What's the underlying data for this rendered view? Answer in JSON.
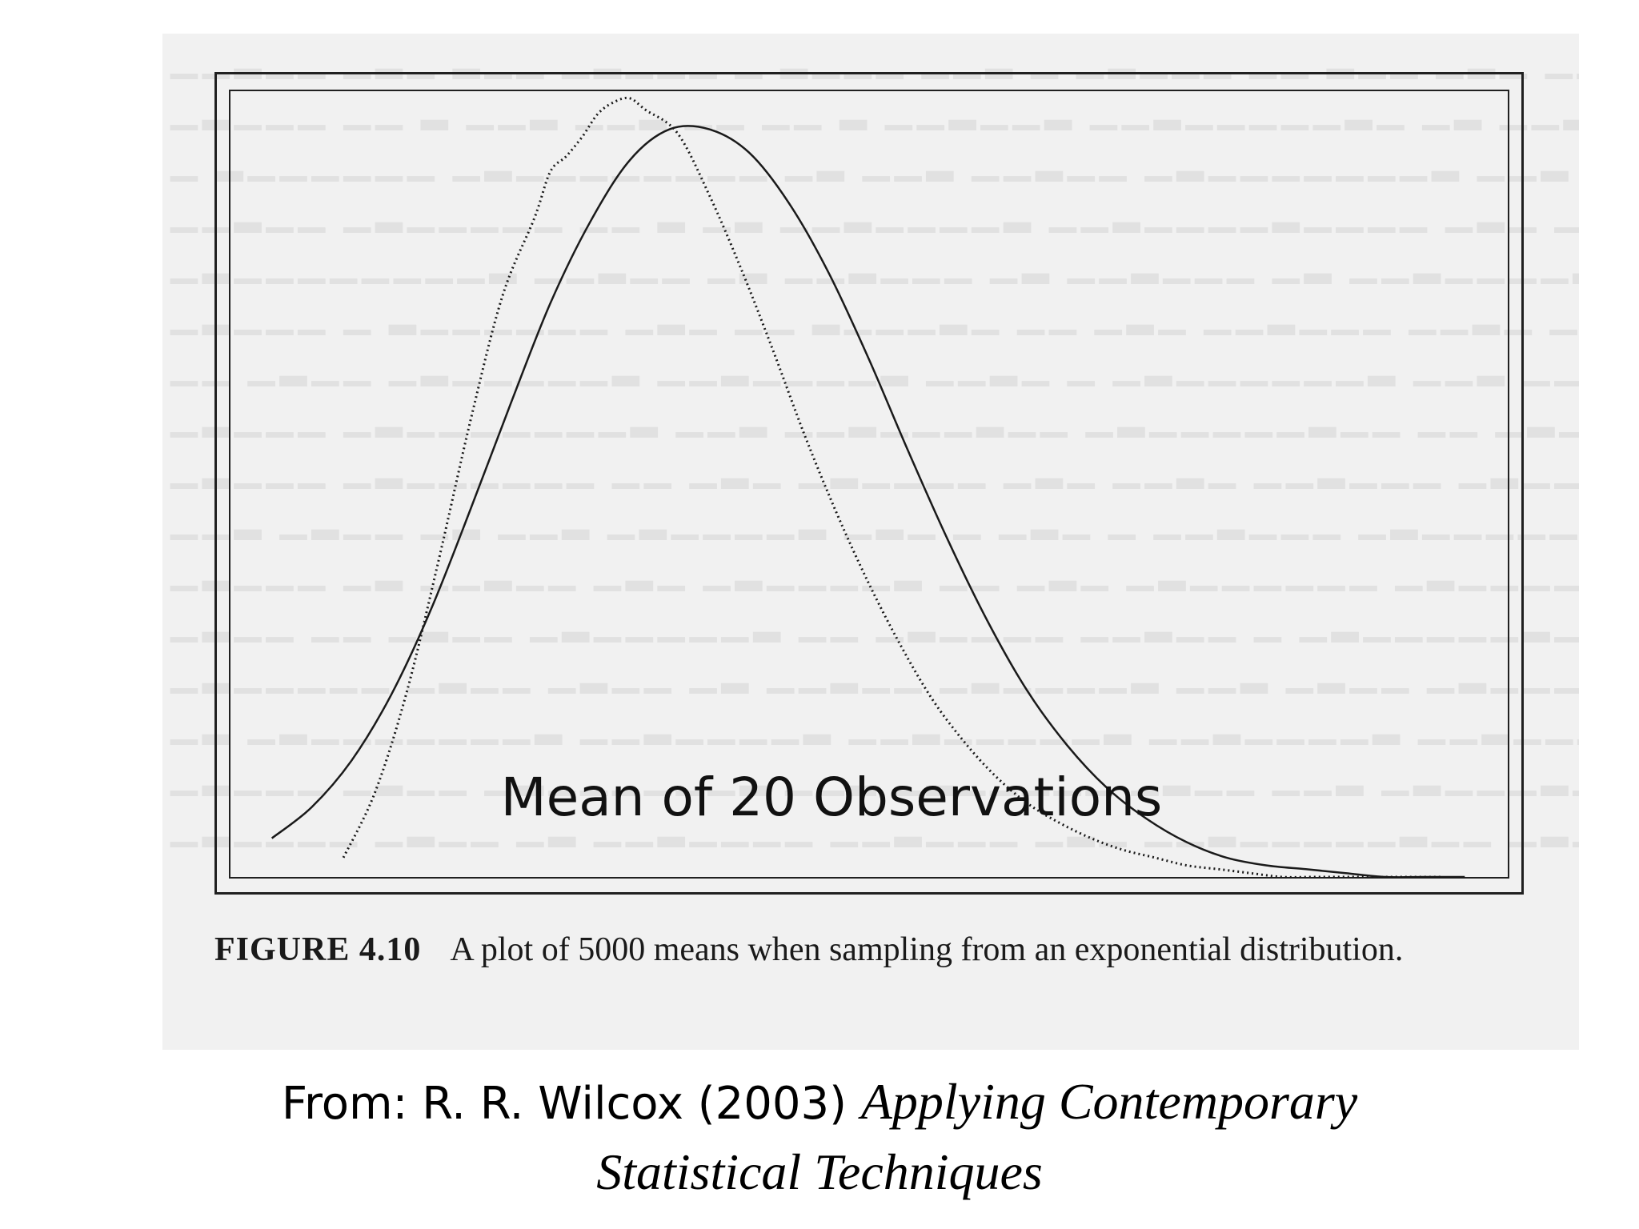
{
  "chart_data": {
    "type": "line",
    "title": "",
    "annotation": "Mean of 20 Observations",
    "xlabel": "",
    "ylabel": "",
    "axes_shown": false,
    "grid": false,
    "xlim": [
      0.3,
      1.9
    ],
    "ylim": [
      0,
      2.02
    ],
    "series": [
      {
        "style": "solid",
        "x": [
          0.35,
          0.4,
          0.45,
          0.5,
          0.55,
          0.6,
          0.65,
          0.7,
          0.75,
          0.8,
          0.85,
          0.9,
          0.95,
          1.0,
          1.05,
          1.1,
          1.15,
          1.2,
          1.25,
          1.3,
          1.35,
          1.4,
          1.45,
          1.5,
          1.55,
          1.6,
          1.65,
          1.7,
          1.75,
          1.8,
          1.85
        ],
        "y": [
          0.1,
          0.18,
          0.3,
          0.47,
          0.69,
          0.95,
          1.22,
          1.48,
          1.69,
          1.85,
          1.93,
          1.93,
          1.87,
          1.74,
          1.56,
          1.34,
          1.1,
          0.87,
          0.66,
          0.48,
          0.34,
          0.23,
          0.15,
          0.09,
          0.05,
          0.03,
          0.02,
          0.01,
          0.0,
          0.0,
          0.0
        ]
      },
      {
        "style": "dotted",
        "x": [
          0.44,
          0.48,
          0.52,
          0.56,
          0.6,
          0.64,
          0.68,
          0.7,
          0.72,
          0.74,
          0.76,
          0.78,
          0.8,
          0.82,
          0.86,
          0.9,
          0.94,
          0.98,
          1.02,
          1.06,
          1.1,
          1.14,
          1.18,
          1.22,
          1.26,
          1.3,
          1.34,
          1.38,
          1.42,
          1.46,
          1.5,
          1.54,
          1.58,
          1.62,
          1.66,
          1.7,
          1.74,
          1.78,
          1.82
        ],
        "y": [
          0.05,
          0.22,
          0.48,
          0.82,
          1.18,
          1.5,
          1.7,
          1.82,
          1.86,
          1.91,
          1.97,
          2.0,
          2.01,
          1.98,
          1.92,
          1.76,
          1.57,
          1.36,
          1.14,
          0.94,
          0.76,
          0.6,
          0.46,
          0.35,
          0.26,
          0.19,
          0.14,
          0.1,
          0.07,
          0.05,
          0.03,
          0.02,
          0.01,
          0.0,
          0.0,
          0.0,
          0.0,
          0.0,
          0.0
        ]
      }
    ]
  },
  "caption": {
    "label": "FIGURE 4.10",
    "text": "A plot of 5000 means when sampling from an exponential distribution."
  },
  "source": {
    "prefix": "From: R. R. Wilcox (2003) ",
    "title_part1": "Applying Contemporary",
    "title_part2": "Statistical Techniques"
  }
}
